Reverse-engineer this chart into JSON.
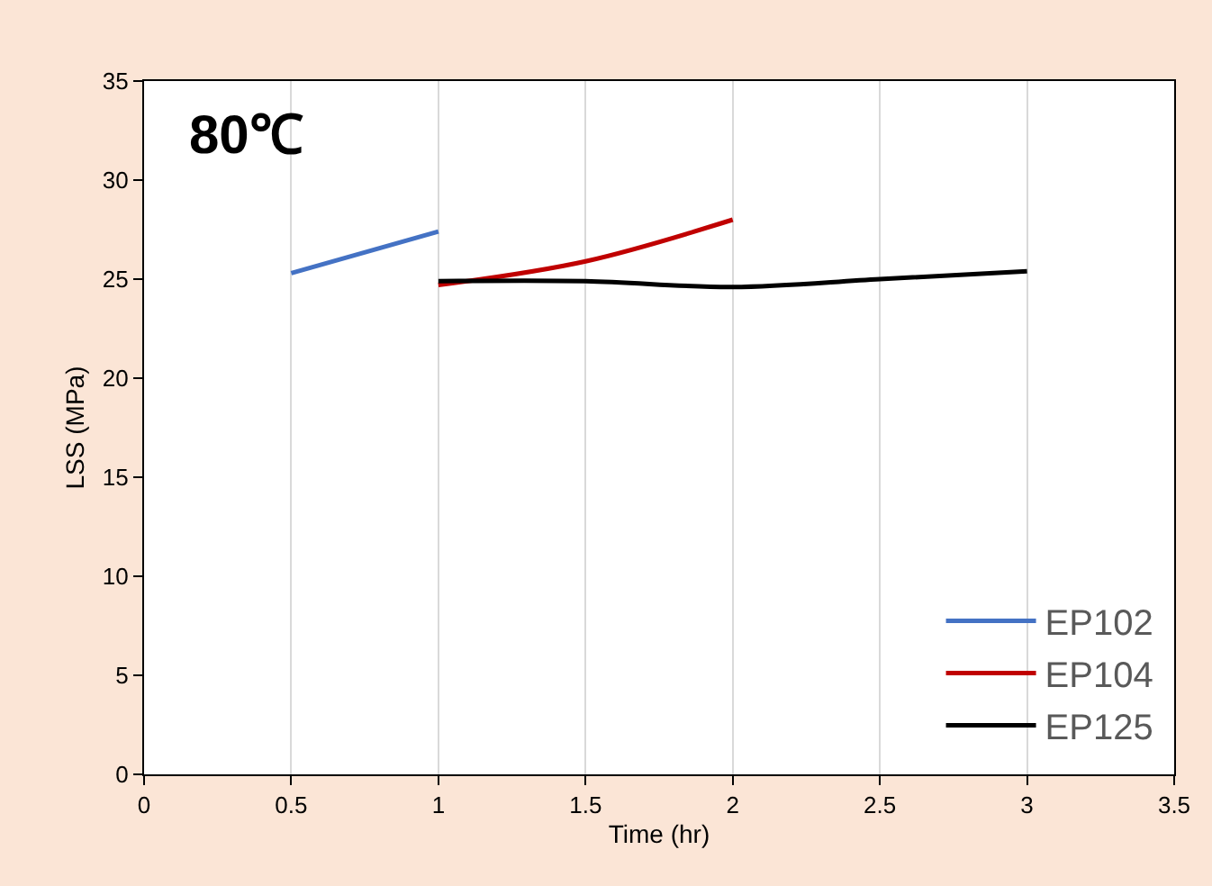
{
  "chart_data": {
    "type": "line",
    "xlabel": "Time (hr)",
    "ylabel": "LSS (MPa)",
    "annotations": [
      "80℃"
    ],
    "xlim": [
      0,
      3.5
    ],
    "xticks": [
      0,
      0.5,
      1,
      1.5,
      2,
      2.5,
      3,
      3.5
    ],
    "ylim": [
      0,
      35
    ],
    "yticks": [
      0,
      5,
      10,
      15,
      20,
      25,
      30,
      35
    ],
    "grid": "x",
    "legend": "bottom right",
    "marker": "none",
    "line_style": "solid",
    "series": [
      {
        "name": "EP102",
        "color": "#4472c4",
        "x": [
          0.5,
          1
        ],
        "values": [
          25.3,
          27.4
        ]
      },
      {
        "name": "EP104",
        "color": "#c00000",
        "x": [
          1,
          1.5,
          2
        ],
        "values": [
          24.7,
          25.9,
          28.0
        ]
      },
      {
        "name": "EP125",
        "color": "#000000",
        "x": [
          1,
          1.5,
          2,
          2.5,
          3
        ],
        "values": [
          24.9,
          24.9,
          24.6,
          25.0,
          25.4
        ]
      }
    ]
  }
}
